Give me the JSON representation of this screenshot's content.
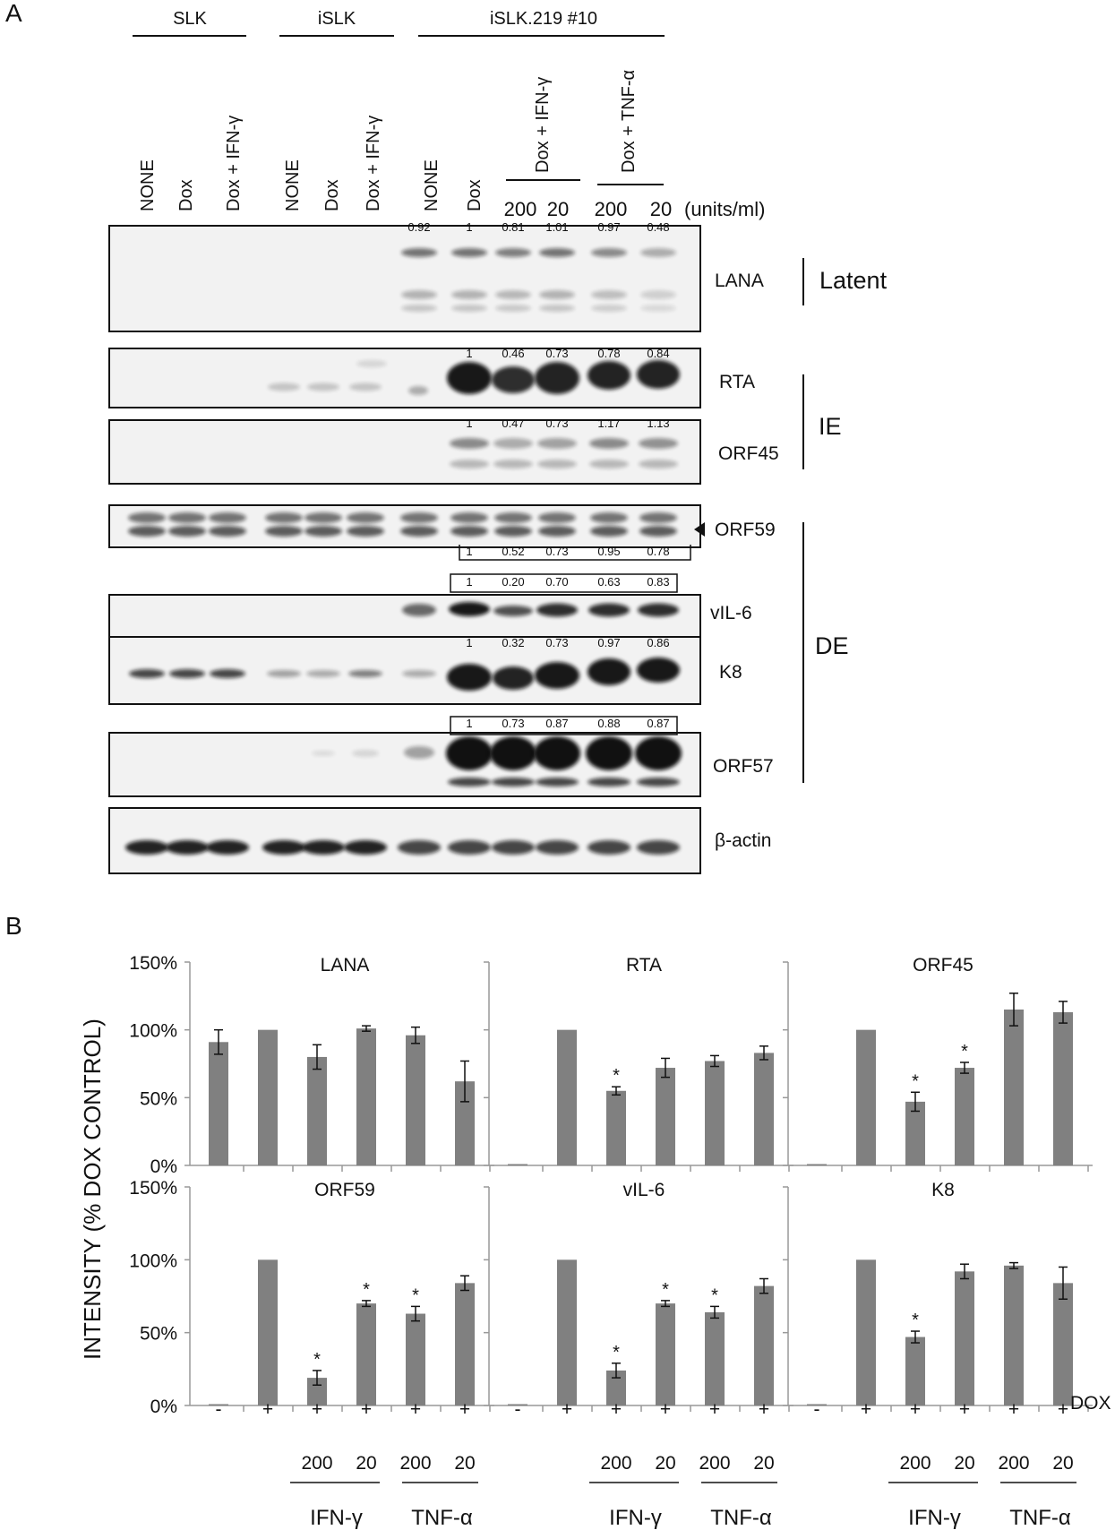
{
  "panelA": {
    "letter": "A",
    "groups": [
      "SLK",
      "iSLK",
      "iSLK.219 #10"
    ],
    "lanes": [
      "NONE",
      "Dox",
      "Dox + IFN-γ",
      "NONE",
      "Dox",
      "Dox + IFN-γ",
      "NONE",
      "Dox"
    ],
    "treatments": [
      "Dox + IFN-γ",
      "Dox + TNF-α"
    ],
    "doses": [
      "200",
      "20",
      "200",
      "20"
    ],
    "units": "(units/ml)",
    "blots": [
      {
        "label": "LANA",
        "values": [
          "0.92",
          "1",
          "0.81",
          "1.01",
          "0.97",
          "0.48"
        ]
      },
      {
        "label": "RTA",
        "values": [
          "1",
          "0.46",
          "0.73",
          "0.78",
          "0.84"
        ]
      },
      {
        "label": "ORF45",
        "values": [
          "1",
          "0.47",
          "0.73",
          "1.17",
          "1.13"
        ]
      },
      {
        "label": "ORF59",
        "values": [
          "1",
          "0.52",
          "0.73",
          "0.95",
          "0.78"
        ]
      },
      {
        "label": "vIL-6",
        "values": [
          "1",
          "0.20",
          "0.70",
          "0.63",
          "0.83"
        ]
      },
      {
        "label": "K8",
        "values": [
          "1",
          "0.32",
          "0.73",
          "0.97",
          "0.86"
        ]
      },
      {
        "label": "ORF57",
        "values": [
          "1",
          "0.73",
          "0.87",
          "0.88",
          "0.87"
        ]
      },
      {
        "label": "β-actin",
        "values": []
      }
    ],
    "categories": [
      "Latent",
      "IE",
      "DE"
    ]
  },
  "panelB": {
    "letter": "B",
    "ylabel": "INTENSITY   (% DOX CONTROL)",
    "dox_row": [
      "-",
      "+",
      "+",
      "+",
      "+",
      "+"
    ],
    "dox_label": "DOX",
    "dose_row": [
      "200",
      "20",
      "200",
      "20"
    ],
    "treat_row": [
      "IFN-γ",
      "TNF-α"
    ],
    "star": "*"
  },
  "chart_data": [
    {
      "type": "bar",
      "title": "LANA",
      "ylim": [
        0,
        150
      ],
      "yticks": [
        "0%",
        "50%",
        "100%",
        "150%"
      ],
      "values": [
        91,
        100,
        80,
        101,
        96,
        62
      ],
      "errors": [
        9,
        0,
        9,
        2,
        6,
        15
      ],
      "significant": [
        false,
        false,
        false,
        false,
        false,
        false
      ]
    },
    {
      "type": "bar",
      "title": "RTA",
      "ylim": [
        0,
        150
      ],
      "yticks": [],
      "values": [
        0,
        100,
        55,
        72,
        77,
        83
      ],
      "errors": [
        0,
        0,
        3,
        7,
        4,
        5
      ],
      "significant": [
        false,
        false,
        true,
        false,
        false,
        false
      ]
    },
    {
      "type": "bar",
      "title": "ORF45",
      "ylim": [
        0,
        150
      ],
      "yticks": [],
      "values": [
        0,
        100,
        47,
        72,
        115,
        113
      ],
      "errors": [
        0,
        0,
        7,
        4,
        12,
        8
      ],
      "significant": [
        false,
        false,
        true,
        true,
        false,
        false
      ]
    },
    {
      "type": "bar",
      "title": "ORF59",
      "ylim": [
        0,
        150
      ],
      "yticks": [
        "0%",
        "50%",
        "100%",
        "150%"
      ],
      "values": [
        0,
        100,
        19,
        70,
        63,
        84
      ],
      "errors": [
        0,
        0,
        5,
        2,
        5,
        5
      ],
      "significant": [
        false,
        false,
        true,
        true,
        true,
        false
      ]
    },
    {
      "type": "bar",
      "title": "vIL-6",
      "ylim": [
        0,
        150
      ],
      "yticks": [],
      "values": [
        0,
        100,
        24,
        70,
        64,
        82
      ],
      "errors": [
        0,
        0,
        5,
        2,
        4,
        5
      ],
      "significant": [
        false,
        false,
        true,
        true,
        true,
        false
      ]
    },
    {
      "type": "bar",
      "title": "K8",
      "ylim": [
        0,
        150
      ],
      "yticks": [],
      "values": [
        0,
        100,
        47,
        92,
        96,
        84
      ],
      "errors": [
        0,
        0,
        4,
        5,
        2,
        11
      ],
      "significant": [
        false,
        false,
        true,
        false,
        false,
        false
      ]
    }
  ]
}
